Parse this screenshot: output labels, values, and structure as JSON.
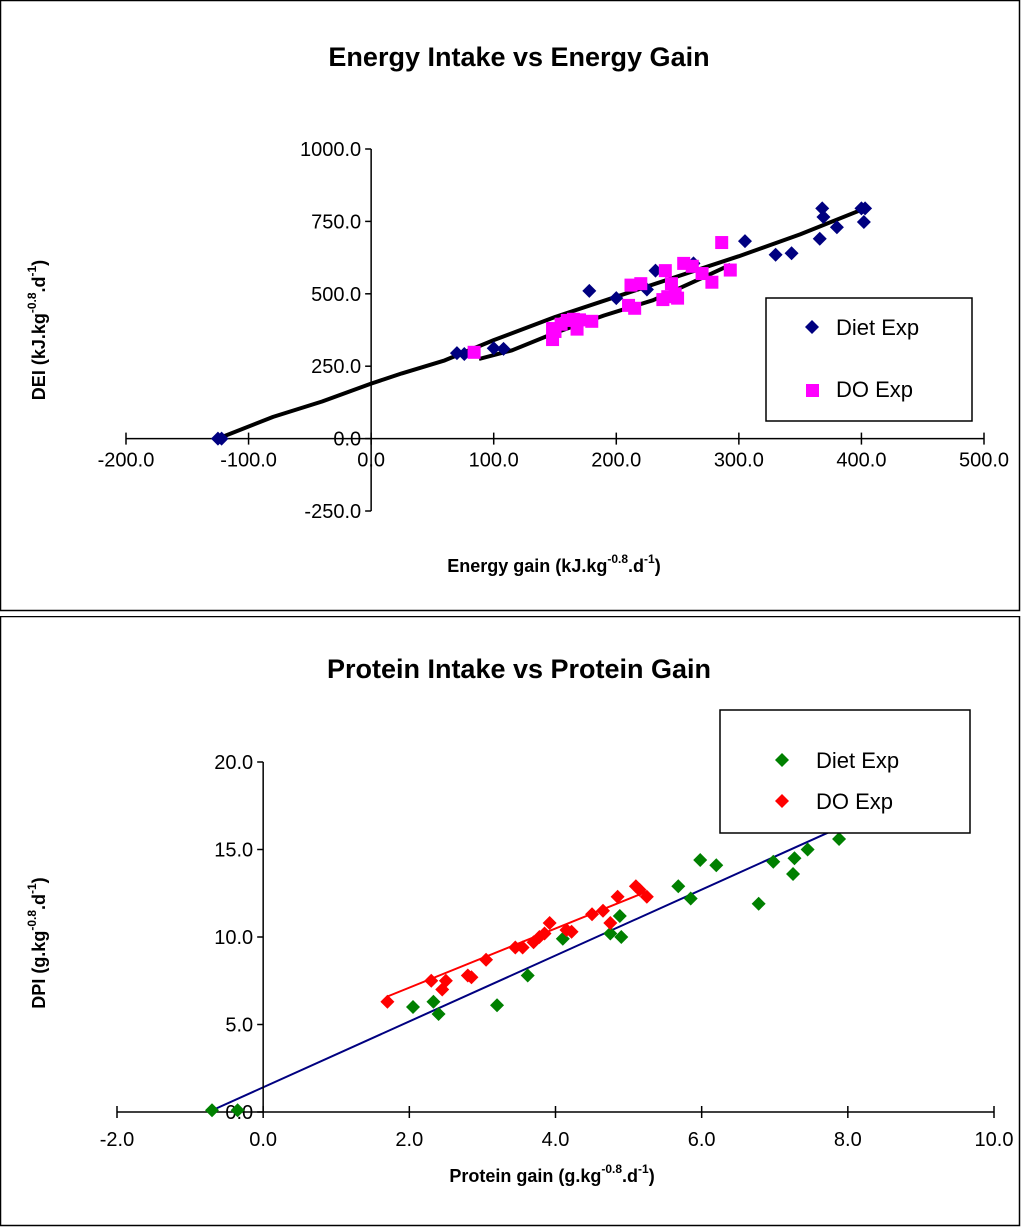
{
  "chart_data": [
    {
      "type": "scatter",
      "title": "Energy Intake vs Energy Gain",
      "xlabel": {
        "base": "Energy gain (kJ.kg",
        "exp1": "-0.8",
        "mid": ".d",
        "exp2": "-1",
        "end": ")"
      },
      "ylabel": {
        "base": "DEI (kJ.kg",
        "exp1": "-0.8",
        "mid": ".d",
        "exp2": "-1",
        "end": ")"
      },
      "xlim": [
        -200,
        500
      ],
      "ylim": [
        -250,
        1000
      ],
      "x_ticks": [
        "-200.0",
        "-100.0",
        "0.0",
        "100.0",
        "200.0",
        "300.0",
        "400.0",
        "500.0"
      ],
      "y_ticks": [
        "-250.0",
        "0.0",
        "250.0",
        "500.0",
        "750.0",
        "1000.0"
      ],
      "grid": false,
      "legend_position": "right",
      "series": [
        {
          "name": "Diet Exp",
          "color": "#000080",
          "marker": "diamond",
          "points": [
            [
              -125,
              0
            ],
            [
              -122,
              0
            ],
            [
              70,
              295
            ],
            [
              76,
              292
            ],
            [
              100,
              312
            ],
            [
              108,
              310
            ],
            [
              178,
              510
            ],
            [
              200,
              485
            ],
            [
              225,
              515
            ],
            [
              232,
              580
            ],
            [
              263,
              605
            ],
            [
              305,
              682
            ],
            [
              330,
              635
            ],
            [
              343,
              640
            ],
            [
              366,
              690
            ],
            [
              368,
              795
            ],
            [
              369,
              765
            ],
            [
              380,
              730
            ],
            [
              400,
              795
            ],
            [
              402,
              748
            ],
            [
              403,
              795
            ]
          ]
        },
        {
          "name": "DO Exp",
          "color": "#ff00ff",
          "marker": "square",
          "points": [
            [
              84,
              298
            ],
            [
              148,
              342
            ],
            [
              148,
              380
            ],
            [
              150,
              370
            ],
            [
              155,
              395
            ],
            [
              160,
              408
            ],
            [
              165,
              412
            ],
            [
              168,
              378
            ],
            [
              170,
              410
            ],
            [
              180,
              405
            ],
            [
              210,
              460
            ],
            [
              212,
              530
            ],
            [
              215,
              450
            ],
            [
              220,
              535
            ],
            [
              238,
              480
            ],
            [
              240,
              580
            ],
            [
              242,
              490
            ],
            [
              245,
              535
            ],
            [
              248,
              500
            ],
            [
              250,
              485
            ],
            [
              255,
              605
            ],
            [
              262,
              595
            ],
            [
              270,
              570
            ],
            [
              278,
              540
            ],
            [
              286,
              677
            ],
            [
              293,
              582
            ]
          ]
        }
      ],
      "trend_lines": [
        {
          "color": "#000000",
          "points": [
            [
              -125,
              0
            ],
            [
              -80,
              75
            ],
            [
              -40,
              128
            ],
            [
              0,
              190
            ],
            [
              25,
              225
            ],
            [
              60,
              270
            ],
            [
              100,
              340
            ],
            [
              150,
              420
            ],
            [
              200,
              490
            ],
            [
              250,
              560
            ],
            [
              300,
              630
            ],
            [
              350,
              705
            ],
            [
              400,
              790
            ]
          ]
        },
        {
          "color": "#000000",
          "points": [
            [
              88,
              275
            ],
            [
              115,
              305
            ],
            [
              150,
              365
            ],
            [
              190,
              425
            ],
            [
              230,
              478
            ],
            [
              270,
              555
            ],
            [
              293,
              600
            ]
          ]
        }
      ]
    },
    {
      "type": "scatter",
      "title": "Protein Intake vs Protein Gain",
      "xlabel": {
        "base": "Protein gain (g.kg",
        "exp1": "-0.8",
        "mid": ".d",
        "exp2": "-1",
        "end": ")"
      },
      "ylabel": {
        "base": "DPI (g.kg",
        "exp1": "-0.8",
        "mid": ".d",
        "exp2": "-1",
        "end": ")"
      },
      "xlim": [
        -2,
        10
      ],
      "ylim": [
        0,
        20
      ],
      "x_ticks": [
        "-2.0",
        "0.0",
        "2.0",
        "4.0",
        "6.0",
        "8.0",
        "10.0"
      ],
      "y_ticks": [
        "0.0",
        "5.0",
        "10.0",
        "15.0",
        "20.0"
      ],
      "grid": false,
      "legend_position": "right",
      "series": [
        {
          "name": "Diet Exp",
          "color": "#008000",
          "marker": "diamond",
          "points": [
            [
              -0.7,
              0.1
            ],
            [
              -0.35,
              0.1
            ],
            [
              2.05,
              6.0
            ],
            [
              2.33,
              6.3
            ],
            [
              2.4,
              5.6
            ],
            [
              3.2,
              6.1
            ],
            [
              3.62,
              7.8
            ],
            [
              4.1,
              9.9
            ],
            [
              4.75,
              10.2
            ],
            [
              4.88,
              11.2
            ],
            [
              4.9,
              10.0
            ],
            [
              5.68,
              12.9
            ],
            [
              5.85,
              12.2
            ],
            [
              5.98,
              14.4
            ],
            [
              6.2,
              14.1
            ],
            [
              6.78,
              11.9
            ],
            [
              6.98,
              14.3
            ],
            [
              7.25,
              13.6
            ],
            [
              7.27,
              14.5
            ],
            [
              7.45,
              15.0
            ],
            [
              7.6,
              16.7
            ],
            [
              7.88,
              15.6
            ]
          ]
        },
        {
          "name": "DO Exp",
          "color": "#ff0000",
          "marker": "diamond",
          "points": [
            [
              1.7,
              6.3
            ],
            [
              2.3,
              7.5
            ],
            [
              2.45,
              7.0
            ],
            [
              2.5,
              7.5
            ],
            [
              2.8,
              7.8
            ],
            [
              2.85,
              7.7
            ],
            [
              3.05,
              8.7
            ],
            [
              3.45,
              9.4
            ],
            [
              3.55,
              9.4
            ],
            [
              3.7,
              9.7
            ],
            [
              3.78,
              10.0
            ],
            [
              3.85,
              10.2
            ],
            [
              3.92,
              10.8
            ],
            [
              4.15,
              10.4
            ],
            [
              4.22,
              10.3
            ],
            [
              4.5,
              11.3
            ],
            [
              4.65,
              11.5
            ],
            [
              4.75,
              10.8
            ],
            [
              4.85,
              12.3
            ],
            [
              5.1,
              12.9
            ],
            [
              5.15,
              12.7
            ],
            [
              5.25,
              12.3
            ]
          ]
        }
      ],
      "trend_lines": [
        {
          "color": "#000080",
          "points": [
            [
              -0.75,
              0.0
            ],
            [
              7.8,
              16.1
            ]
          ]
        },
        {
          "color": "#ff0000",
          "points": [
            [
              1.7,
              6.6
            ],
            [
              5.25,
              12.6
            ]
          ]
        }
      ]
    }
  ]
}
